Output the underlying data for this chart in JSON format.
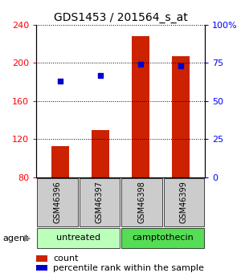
{
  "title": "GDS1453 / 201564_s_at",
  "samples": [
    "GSM46396",
    "GSM46397",
    "GSM46398",
    "GSM46399"
  ],
  "counts": [
    113,
    130,
    228,
    207
  ],
  "percentiles": [
    63,
    67,
    74,
    73
  ],
  "ylim_left": [
    80,
    240
  ],
  "ylim_right": [
    0,
    100
  ],
  "yticks_left": [
    80,
    120,
    160,
    200,
    240
  ],
  "yticks_right": [
    0,
    25,
    50,
    75,
    100
  ],
  "ytick_labels_right": [
    "0",
    "25",
    "50",
    "75",
    "100%"
  ],
  "bar_color": "#cc2200",
  "dot_color": "#0000cc",
  "bar_width": 0.45,
  "groups": [
    {
      "label": "untreated",
      "indices": [
        0,
        1
      ],
      "color": "#bbffbb"
    },
    {
      "label": "camptothecin",
      "indices": [
        2,
        3
      ],
      "color": "#55dd55"
    }
  ],
  "agent_label": "agent",
  "legend_count_label": "count",
  "legend_pct_label": "percentile rank within the sample",
  "title_fontsize": 10,
  "tick_fontsize": 8,
  "sample_box_color": "#cccccc",
  "plot_bg_color": "#ffffff"
}
